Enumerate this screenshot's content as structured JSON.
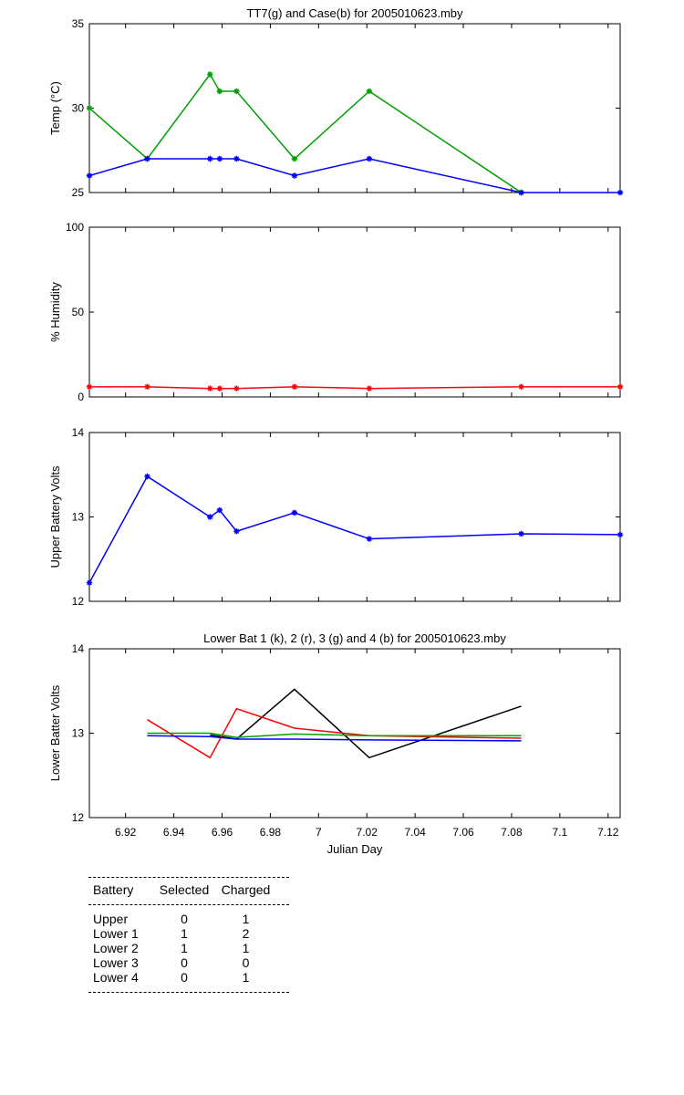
{
  "chart_data": [
    {
      "type": "line",
      "title": "TT7(g) and Case(b) for 2005010623.mby",
      "xlabel": "",
      "ylabel": "Temp  (°C)",
      "xlim": [
        6.905,
        7.125
      ],
      "ylim": [
        25,
        35
      ],
      "yticks": [
        25,
        30,
        35
      ],
      "grid": false,
      "series": [
        {
          "color": "#00a000",
          "marker": true,
          "x": [
            6.905,
            6.929,
            6.955,
            6.959,
            6.966,
            6.99,
            7.021,
            7.084
          ],
          "y": [
            30,
            27,
            32,
            31,
            31,
            27,
            31,
            25
          ]
        },
        {
          "color": "#0000ff",
          "marker": true,
          "x": [
            6.905,
            6.929,
            6.955,
            6.959,
            6.966,
            6.99,
            7.021,
            7.084,
            7.125
          ],
          "y": [
            26,
            27,
            27,
            27,
            27,
            26,
            27,
            25,
            25
          ]
        }
      ]
    },
    {
      "type": "line",
      "title": "",
      "xlabel": "",
      "ylabel": "% Humidity",
      "xlim": [
        6.905,
        7.125
      ],
      "ylim": [
        0,
        100
      ],
      "yticks": [
        0,
        50,
        100
      ],
      "grid": false,
      "series": [
        {
          "color": "#ff0000",
          "marker": true,
          "x": [
            6.905,
            6.929,
            6.955,
            6.959,
            6.966,
            6.99,
            7.021,
            7.084,
            7.125
          ],
          "y": [
            6,
            6,
            5,
            5,
            5,
            6,
            5,
            6,
            6
          ]
        }
      ]
    },
    {
      "type": "line",
      "title": "",
      "xlabel": "",
      "ylabel": "Upper Battery Volts",
      "xlim": [
        6.905,
        7.125
      ],
      "ylim": [
        12,
        14
      ],
      "yticks": [
        12,
        13,
        14
      ],
      "grid": false,
      "series": [
        {
          "color": "#0000ff",
          "marker": true,
          "x": [
            6.905,
            6.929,
            6.955,
            6.959,
            6.966,
            6.99,
            7.021,
            7.084,
            7.125
          ],
          "y": [
            12.22,
            13.48,
            13.0,
            13.08,
            12.83,
            13.05,
            12.74,
            12.8,
            12.79
          ]
        }
      ]
    },
    {
      "type": "line",
      "title": "Lower Bat 1 (k), 2 (r), 3 (g) and 4 (b) for 2005010623.mby",
      "xlabel": "Julian Day",
      "ylabel": "Lower Batter Volts",
      "xlim": [
        6.905,
        7.125
      ],
      "ylim": [
        12,
        14
      ],
      "yticks": [
        12,
        13,
        14
      ],
      "xticks": [
        "6.92",
        "6.94",
        "6.96",
        "6.98",
        "7",
        "7.02",
        "7.04",
        "7.06",
        "7.08",
        "7.1",
        "7.12"
      ],
      "grid": false,
      "series": [
        {
          "color": "#000000",
          "marker": false,
          "x": [
            6.955,
            6.966,
            6.99,
            7.021,
            7.084
          ],
          "y": [
            12.98,
            12.93,
            13.52,
            12.71,
            13.32
          ]
        },
        {
          "color": "#ff0000",
          "marker": false,
          "x": [
            6.929,
            6.955,
            6.966,
            6.99,
            7.021,
            7.084
          ],
          "y": [
            13.16,
            12.71,
            13.29,
            13.06,
            12.97,
            12.94
          ]
        },
        {
          "color": "#00a000",
          "marker": false,
          "x": [
            6.929,
            6.955,
            6.966,
            6.99,
            7.021,
            7.084
          ],
          "y": [
            13.0,
            13.0,
            12.95,
            12.99,
            12.97,
            12.97
          ]
        },
        {
          "color": "#0000ff",
          "marker": false,
          "x": [
            6.929,
            6.955,
            6.966,
            6.99,
            7.021,
            7.084
          ],
          "y": [
            12.97,
            12.96,
            12.93,
            12.93,
            12.92,
            12.91
          ]
        }
      ]
    }
  ],
  "battery_table": {
    "headers": {
      "battery": "Battery",
      "selected": "Selected",
      "charged": "Charged"
    },
    "rows": [
      {
        "battery": "Upper",
        "selected": "0",
        "charged": "1"
      },
      {
        "battery": "Lower 1",
        "selected": "1",
        "charged": "2"
      },
      {
        "battery": "Lower 2",
        "selected": "1",
        "charged": "1"
      },
      {
        "battery": "Lower 3",
        "selected": "0",
        "charged": "0"
      },
      {
        "battery": "Lower 4",
        "selected": "0",
        "charged": "1"
      }
    ]
  }
}
